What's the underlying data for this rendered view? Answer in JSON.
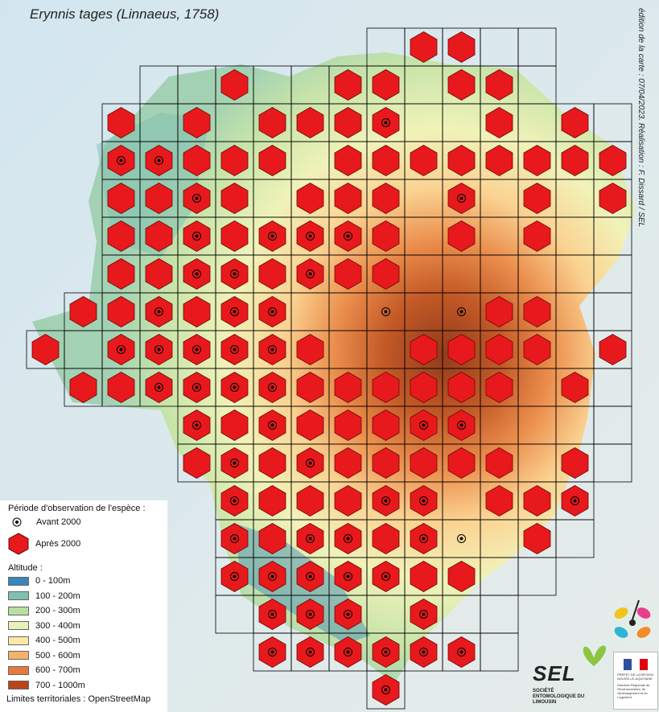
{
  "title": "Erynnis tages (Linnaeus, 1758)",
  "credit": "édition de la carte : 07/04/2023. Réalisation : F. Dissard / SEL",
  "legend": {
    "period_title": "Période d'observation de l'espèce :",
    "before": "Avant 2000",
    "after": "Après 2000",
    "altitude_title": "Altitude :",
    "altitude_classes": [
      {
        "label": "0 - 100m",
        "color": "#3a86b8"
      },
      {
        "label": "100 - 200m",
        "color": "#7fc0b2"
      },
      {
        "label": "200 - 300m",
        "color": "#b7dfa2"
      },
      {
        "label": "300 - 400m",
        "color": "#e7f2b8"
      },
      {
        "label": "400 - 500m",
        "color": "#fde8a8"
      },
      {
        "label": "500 - 600m",
        "color": "#f6b26b"
      },
      {
        "label": "600 - 700m",
        "color": "#e8793e"
      },
      {
        "label": "700 - 1000m",
        "color": "#b8461a"
      }
    ],
    "source": "Limites territoriales : OpenStreetMap"
  },
  "logos": {
    "sel_name": "SEL",
    "sel_subtitle": "SOCIÉTÉ ENTOMOLOGIQUE DU LIMOUSIN",
    "prefet_lines": [
      "PRÉFET DE LA RÉGION",
      "NOUVELLE-AQUITAINE",
      "Direction Régionale de l'Environnement, de l'Aménagement et du Logement"
    ]
  },
  "colors": {
    "hexagon": "#e8191c",
    "hexagon_stroke": "#6a0a0a",
    "grid": "#000000"
  },
  "grid_rows": [
    {
      "start": 9,
      "cells": "..........11.."
    },
    {
      "start": 3,
      "cells": "............................................"
    },
    {
      "start": 2,
      "cells": "....................................."
    },
    {
      "start": 2,
      "cells": "..................................."
    },
    {
      "start": 2,
      "cells": "..................................."
    },
    {
      "start": 2,
      "cells": "..................................."
    },
    {
      "start": 2,
      "cells": "..................................."
    },
    {
      "start": 1,
      "cells": "..................................."
    },
    {
      "start": 0,
      "cells": "..................................."
    },
    {
      "start": 1,
      "cells": "..................................."
    },
    {
      "start": 4,
      "cells": "..................................."
    },
    {
      "start": 4,
      "cells": "..................................."
    },
    {
      "start": 5,
      "cells": "..................................."
    },
    {
      "start": 5,
      "cells": "..................................."
    },
    {
      "start": 5,
      "cells": "..................................."
    },
    {
      "start": 6,
      "cells": "..................................."
    },
    {
      "start": 6,
      "cells": "..................................."
    },
    {
      "start": 9,
      "cells": "..................................."
    }
  ],
  "records": [
    {
      "r": 0,
      "c": 10,
      "t": "A"
    },
    {
      "r": 0,
      "c": 11,
      "t": "A"
    },
    {
      "r": 1,
      "c": 5,
      "t": "A"
    },
    {
      "r": 1,
      "c": 8,
      "t": "A"
    },
    {
      "r": 1,
      "c": 9,
      "t": "A"
    },
    {
      "r": 1,
      "c": 11,
      "t": "A"
    },
    {
      "r": 1,
      "c": 12,
      "t": "A"
    },
    {
      "r": 2,
      "c": 2,
      "t": "A"
    },
    {
      "r": 2,
      "c": 4,
      "t": "A"
    },
    {
      "r": 2,
      "c": 6,
      "t": "A"
    },
    {
      "r": 2,
      "c": 7,
      "t": "A"
    },
    {
      "r": 2,
      "c": 8,
      "t": "A"
    },
    {
      "r": 2,
      "c": 9,
      "t": "B"
    },
    {
      "r": 2,
      "c": 12,
      "t": "A"
    },
    {
      "r": 2,
      "c": 14,
      "t": "A"
    },
    {
      "r": 3,
      "c": 2,
      "t": "B"
    },
    {
      "r": 3,
      "c": 3,
      "t": "B"
    },
    {
      "r": 3,
      "c": 4,
      "t": "A"
    },
    {
      "r": 3,
      "c": 5,
      "t": "A"
    },
    {
      "r": 3,
      "c": 6,
      "t": "A"
    },
    {
      "r": 3,
      "c": 8,
      "t": "A"
    },
    {
      "r": 3,
      "c": 9,
      "t": "A"
    },
    {
      "r": 3,
      "c": 10,
      "t": "A"
    },
    {
      "r": 3,
      "c": 11,
      "t": "A"
    },
    {
      "r": 3,
      "c": 12,
      "t": "A"
    },
    {
      "r": 3,
      "c": 13,
      "t": "A"
    },
    {
      "r": 3,
      "c": 14,
      "t": "A"
    },
    {
      "r": 3,
      "c": 15,
      "t": "A"
    },
    {
      "r": 4,
      "c": 2,
      "t": "A"
    },
    {
      "r": 4,
      "c": 3,
      "t": "A"
    },
    {
      "r": 4,
      "c": 4,
      "t": "B"
    },
    {
      "r": 4,
      "c": 5,
      "t": "A"
    },
    {
      "r": 4,
      "c": 7,
      "t": "A"
    },
    {
      "r": 4,
      "c": 8,
      "t": "A"
    },
    {
      "r": 4,
      "c": 9,
      "t": "A"
    },
    {
      "r": 4,
      "c": 11,
      "t": "B"
    },
    {
      "r": 4,
      "c": 13,
      "t": "A"
    },
    {
      "r": 4,
      "c": 15,
      "t": "A"
    },
    {
      "r": 5,
      "c": 2,
      "t": "A"
    },
    {
      "r": 5,
      "c": 3,
      "t": "A"
    },
    {
      "r": 5,
      "c": 4,
      "t": "B"
    },
    {
      "r": 5,
      "c": 5,
      "t": "A"
    },
    {
      "r": 5,
      "c": 6,
      "t": "B"
    },
    {
      "r": 5,
      "c": 7,
      "t": "B"
    },
    {
      "r": 5,
      "c": 8,
      "t": "B"
    },
    {
      "r": 5,
      "c": 9,
      "t": "A"
    },
    {
      "r": 5,
      "c": 11,
      "t": "A"
    },
    {
      "r": 5,
      "c": 13,
      "t": "A"
    },
    {
      "r": 6,
      "c": 2,
      "t": "A"
    },
    {
      "r": 6,
      "c": 3,
      "t": "A"
    },
    {
      "r": 6,
      "c": 4,
      "t": "B"
    },
    {
      "r": 6,
      "c": 5,
      "t": "B"
    },
    {
      "r": 6,
      "c": 6,
      "t": "A"
    },
    {
      "r": 6,
      "c": 7,
      "t": "B"
    },
    {
      "r": 6,
      "c": 8,
      "t": "A"
    },
    {
      "r": 6,
      "c": 9,
      "t": "A"
    },
    {
      "r": 7,
      "c": 1,
      "t": "A"
    },
    {
      "r": 7,
      "c": 2,
      "t": "A"
    },
    {
      "r": 7,
      "c": 3,
      "t": "B"
    },
    {
      "r": 7,
      "c": 4,
      "t": "A"
    },
    {
      "r": 7,
      "c": 5,
      "t": "B"
    },
    {
      "r": 7,
      "c": 6,
      "t": "B"
    },
    {
      "r": 7,
      "c": 9,
      "t": "P"
    },
    {
      "r": 7,
      "c": 11,
      "t": "P"
    },
    {
      "r": 7,
      "c": 12,
      "t": "A"
    },
    {
      "r": 7,
      "c": 13,
      "t": "A"
    },
    {
      "r": 8,
      "c": 0,
      "t": "A"
    },
    {
      "r": 8,
      "c": 2,
      "t": "B"
    },
    {
      "r": 8,
      "c": 3,
      "t": "B"
    },
    {
      "r": 8,
      "c": 4,
      "t": "B"
    },
    {
      "r": 8,
      "c": 5,
      "t": "B"
    },
    {
      "r": 8,
      "c": 6,
      "t": "B"
    },
    {
      "r": 8,
      "c": 7,
      "t": "A"
    },
    {
      "r": 8,
      "c": 10,
      "t": "A"
    },
    {
      "r": 8,
      "c": 11,
      "t": "A"
    },
    {
      "r": 8,
      "c": 12,
      "t": "A"
    },
    {
      "r": 8,
      "c": 13,
      "t": "A"
    },
    {
      "r": 8,
      "c": 15,
      "t": "A"
    },
    {
      "r": 9,
      "c": 1,
      "t": "A"
    },
    {
      "r": 9,
      "c": 2,
      "t": "A"
    },
    {
      "r": 9,
      "c": 3,
      "t": "B"
    },
    {
      "r": 9,
      "c": 4,
      "t": "B"
    },
    {
      "r": 9,
      "c": 5,
      "t": "B"
    },
    {
      "r": 9,
      "c": 6,
      "t": "B"
    },
    {
      "r": 9,
      "c": 7,
      "t": "A"
    },
    {
      "r": 9,
      "c": 8,
      "t": "A"
    },
    {
      "r": 9,
      "c": 9,
      "t": "A"
    },
    {
      "r": 9,
      "c": 10,
      "t": "A"
    },
    {
      "r": 9,
      "c": 11,
      "t": "A"
    },
    {
      "r": 9,
      "c": 12,
      "t": "A"
    },
    {
      "r": 9,
      "c": 14,
      "t": "A"
    },
    {
      "r": 10,
      "c": 4,
      "t": "B"
    },
    {
      "r": 10,
      "c": 5,
      "t": "A"
    },
    {
      "r": 10,
      "c": 6,
      "t": "B"
    },
    {
      "r": 10,
      "c": 7,
      "t": "A"
    },
    {
      "r": 10,
      "c": 8,
      "t": "A"
    },
    {
      "r": 10,
      "c": 9,
      "t": "A"
    },
    {
      "r": 10,
      "c": 10,
      "t": "B"
    },
    {
      "r": 10,
      "c": 11,
      "t": "B"
    },
    {
      "r": 11,
      "c": 4,
      "t": "A"
    },
    {
      "r": 11,
      "c": 5,
      "t": "B"
    },
    {
      "r": 11,
      "c": 6,
      "t": "A"
    },
    {
      "r": 11,
      "c": 7,
      "t": "B"
    },
    {
      "r": 11,
      "c": 8,
      "t": "A"
    },
    {
      "r": 11,
      "c": 9,
      "t": "A"
    },
    {
      "r": 11,
      "c": 10,
      "t": "A"
    },
    {
      "r": 11,
      "c": 11,
      "t": "A"
    },
    {
      "r": 11,
      "c": 12,
      "t": "A"
    },
    {
      "r": 11,
      "c": 14,
      "t": "A"
    },
    {
      "r": 12,
      "c": 5,
      "t": "B"
    },
    {
      "r": 12,
      "c": 6,
      "t": "A"
    },
    {
      "r": 12,
      "c": 7,
      "t": "A"
    },
    {
      "r": 12,
      "c": 8,
      "t": "A"
    },
    {
      "r": 12,
      "c": 9,
      "t": "B"
    },
    {
      "r": 12,
      "c": 10,
      "t": "B"
    },
    {
      "r": 12,
      "c": 12,
      "t": "A"
    },
    {
      "r": 12,
      "c": 13,
      "t": "A"
    },
    {
      "r": 12,
      "c": 14,
      "t": "B"
    },
    {
      "r": 13,
      "c": 5,
      "t": "B"
    },
    {
      "r": 13,
      "c": 6,
      "t": "A"
    },
    {
      "r": 13,
      "c": 7,
      "t": "B"
    },
    {
      "r": 13,
      "c": 8,
      "t": "B"
    },
    {
      "r": 13,
      "c": 9,
      "t": "A"
    },
    {
      "r": 13,
      "c": 10,
      "t": "B"
    },
    {
      "r": 13,
      "c": 11,
      "t": "P"
    },
    {
      "r": 13,
      "c": 13,
      "t": "A"
    },
    {
      "r": 14,
      "c": 5,
      "t": "B"
    },
    {
      "r": 14,
      "c": 6,
      "t": "B"
    },
    {
      "r": 14,
      "c": 7,
      "t": "B"
    },
    {
      "r": 14,
      "c": 8,
      "t": "B"
    },
    {
      "r": 14,
      "c": 9,
      "t": "B"
    },
    {
      "r": 14,
      "c": 10,
      "t": "A"
    },
    {
      "r": 14,
      "c": 11,
      "t": "A"
    },
    {
      "r": 15,
      "c": 6,
      "t": "B"
    },
    {
      "r": 15,
      "c": 7,
      "t": "B"
    },
    {
      "r": 15,
      "c": 8,
      "t": "B"
    },
    {
      "r": 15,
      "c": 10,
      "t": "B"
    },
    {
      "r": 16,
      "c": 6,
      "t": "B"
    },
    {
      "r": 16,
      "c": 7,
      "t": "B"
    },
    {
      "r": 16,
      "c": 8,
      "t": "B"
    },
    {
      "r": 16,
      "c": 9,
      "t": "B"
    },
    {
      "r": 16,
      "c": 10,
      "t": "B"
    },
    {
      "r": 16,
      "c": 11,
      "t": "B"
    },
    {
      "r": 17,
      "c": 9,
      "t": "B"
    }
  ]
}
